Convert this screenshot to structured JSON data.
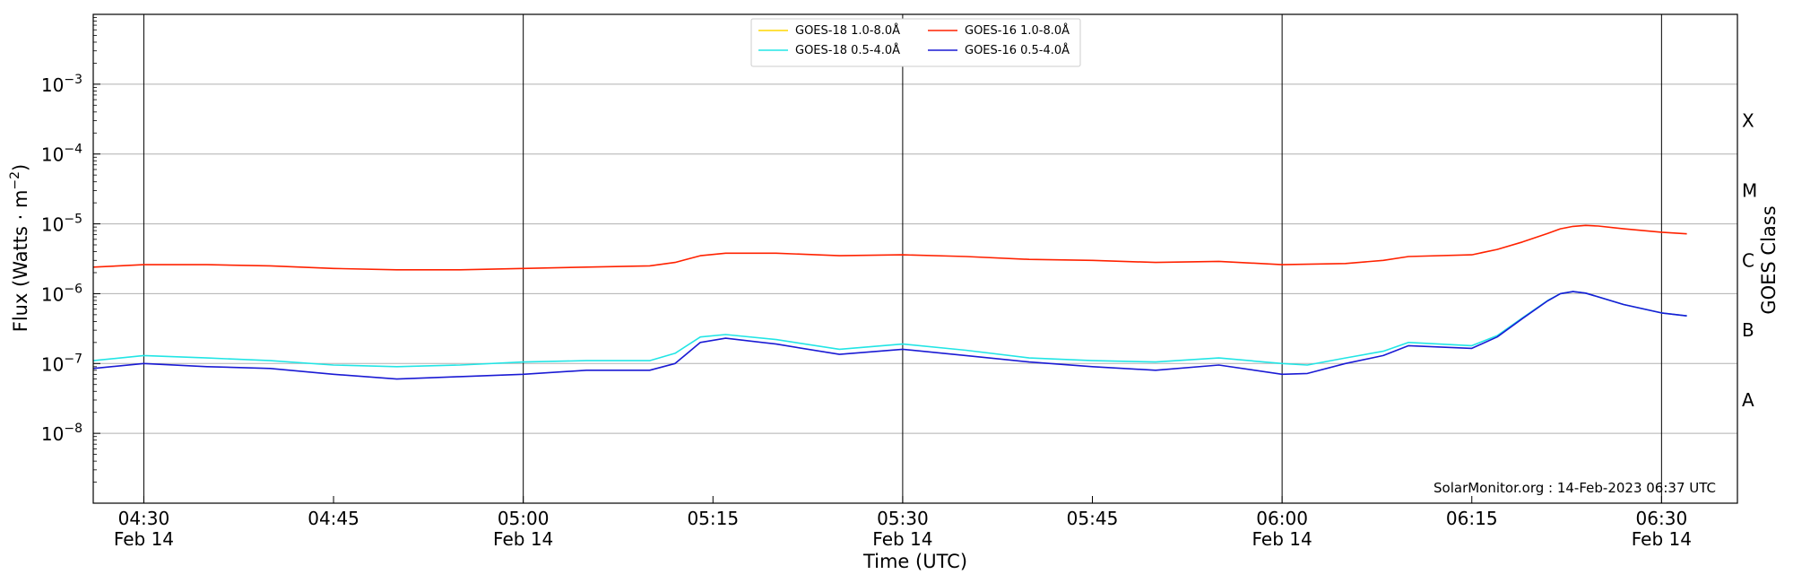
{
  "chart_data": {
    "type": "line",
    "title": "",
    "xlabel": "Time (UTC)",
    "ylabel": "Flux (Watts · m⁻²)",
    "ylabel_right": "GOES Class",
    "yscale": "log",
    "ylim": [
      1e-09,
      0.01
    ],
    "x_range": [
      "04:26",
      "06:36"
    ],
    "x_ticks": [
      {
        "time": "04:30",
        "label": "04:30",
        "date": "Feb 14"
      },
      {
        "time": "04:45",
        "label": "04:45",
        "date": ""
      },
      {
        "time": "05:00",
        "label": "05:00",
        "date": "Feb 14"
      },
      {
        "time": "05:15",
        "label": "05:15",
        "date": ""
      },
      {
        "time": "05:30",
        "label": "05:30",
        "date": "Feb 14"
      },
      {
        "time": "05:45",
        "label": "05:45",
        "date": ""
      },
      {
        "time": "06:00",
        "label": "06:00",
        "date": "Feb 14"
      },
      {
        "time": "06:15",
        "label": "06:15",
        "date": ""
      },
      {
        "time": "06:30",
        "label": "06:30",
        "date": "Feb 14"
      }
    ],
    "vertical_lines": [
      "04:30",
      "05:00",
      "05:30",
      "06:00",
      "06:30"
    ],
    "y_ticks": [
      {
        "value": 1e-08,
        "base": "10",
        "exp": "−8"
      },
      {
        "value": 1e-07,
        "base": "10",
        "exp": "−7"
      },
      {
        "value": 1e-06,
        "base": "10",
        "exp": "−6"
      },
      {
        "value": 1e-05,
        "base": "10",
        "exp": "−5"
      },
      {
        "value": 0.0001,
        "base": "10",
        "exp": "−4"
      },
      {
        "value": 0.001,
        "base": "10",
        "exp": "−3"
      }
    ],
    "goes_classes": [
      {
        "label": "A",
        "value": 3e-08
      },
      {
        "label": "B",
        "value": 3e-07
      },
      {
        "label": "C",
        "value": 3e-06
      },
      {
        "label": "M",
        "value": 3e-05
      },
      {
        "label": "X",
        "value": 0.0003
      }
    ],
    "grid": "horizontal at decades",
    "legend_position": "top-center",
    "legend": [
      {
        "label": "GOES-18 1.0-8.0Å",
        "color": "#ffd700"
      },
      {
        "label": "GOES-18 0.5-4.0Å",
        "color": "#22e5e5"
      },
      {
        "label": "GOES-16 1.0-8.0Å",
        "color": "#ff2200"
      },
      {
        "label": "GOES-16 0.5-4.0Å",
        "color": "#1a1ad4"
      }
    ],
    "footer": "SolarMonitor.org : 14-Feb-2023 06:37 UTC",
    "series": [
      {
        "name": "GOES-16 1.0-8.0Å",
        "color": "#ff2200",
        "x": [
          "04:26",
          "04:30",
          "04:35",
          "04:40",
          "04:45",
          "04:50",
          "04:55",
          "05:00",
          "05:05",
          "05:10",
          "05:12",
          "05:14",
          "05:16",
          "05:20",
          "05:25",
          "05:30",
          "05:35",
          "05:40",
          "05:45",
          "05:50",
          "05:55",
          "06:00",
          "06:05",
          "06:08",
          "06:10",
          "06:15",
          "06:17",
          "06:19",
          "06:21",
          "06:22",
          "06:23",
          "06:24",
          "06:25",
          "06:27",
          "06:30",
          "06:32"
        ],
        "values": [
          2.4e-06,
          2.6e-06,
          2.6e-06,
          2.5e-06,
          2.3e-06,
          2.2e-06,
          2.2e-06,
          2.3e-06,
          2.4e-06,
          2.5e-06,
          2.8e-06,
          3.5e-06,
          3.8e-06,
          3.8e-06,
          3.5e-06,
          3.6e-06,
          3.4e-06,
          3.1e-06,
          3e-06,
          2.8e-06,
          2.9e-06,
          2.6e-06,
          2.7e-06,
          3e-06,
          3.4e-06,
          3.6e-06,
          4.3e-06,
          5.5e-06,
          7.3e-06,
          8.5e-06,
          9.2e-06,
          9.5e-06,
          9.3e-06,
          8.5e-06,
          7.6e-06,
          7.2e-06
        ]
      },
      {
        "name": "GOES-18 0.5-4.0Å",
        "color": "#22e5e5",
        "x": [
          "04:26",
          "04:30",
          "04:35",
          "04:40",
          "04:45",
          "04:50",
          "04:55",
          "05:00",
          "05:05",
          "05:10",
          "05:12",
          "05:14",
          "05:16",
          "05:20",
          "05:25",
          "05:30",
          "05:35",
          "05:40",
          "05:45",
          "05:50",
          "05:55",
          "06:00",
          "06:02",
          "06:05",
          "06:08",
          "06:10",
          "06:15",
          "06:17",
          "06:19",
          "06:21",
          "06:22",
          "06:23",
          "06:24",
          "06:25",
          "06:27",
          "06:30",
          "06:32"
        ],
        "values": [
          1.1e-07,
          1.3e-07,
          1.2e-07,
          1.1e-07,
          9.5e-08,
          9e-08,
          9.5e-08,
          1.05e-07,
          1.1e-07,
          1.1e-07,
          1.4e-07,
          2.4e-07,
          2.6e-07,
          2.2e-07,
          1.6e-07,
          1.9e-07,
          1.55e-07,
          1.2e-07,
          1.1e-07,
          1.05e-07,
          1.2e-07,
          1e-07,
          9.5e-08,
          1.2e-07,
          1.5e-07,
          2e-07,
          1.8e-07,
          2.5e-07,
          4.5e-07,
          8e-07,
          1e-06,
          1.07e-06,
          1.02e-06,
          9e-07,
          7e-07,
          5.3e-07,
          4.8e-07
        ]
      },
      {
        "name": "GOES-16 0.5-4.0Å",
        "color": "#1a1ad4",
        "x": [
          "04:26",
          "04:30",
          "04:35",
          "04:40",
          "04:45",
          "04:50",
          "04:55",
          "05:00",
          "05:05",
          "05:10",
          "05:12",
          "05:14",
          "05:16",
          "05:20",
          "05:25",
          "05:30",
          "05:35",
          "05:40",
          "05:45",
          "05:50",
          "05:55",
          "06:00",
          "06:02",
          "06:05",
          "06:08",
          "06:10",
          "06:15",
          "06:17",
          "06:19",
          "06:21",
          "06:22",
          "06:23",
          "06:24",
          "06:25",
          "06:27",
          "06:30",
          "06:32"
        ],
        "values": [
          8.5e-08,
          1e-07,
          9e-08,
          8.5e-08,
          7e-08,
          6e-08,
          6.5e-08,
          7e-08,
          8e-08,
          8e-08,
          1e-07,
          2e-07,
          2.3e-07,
          1.9e-07,
          1.35e-07,
          1.6e-07,
          1.3e-07,
          1.05e-07,
          9e-08,
          8e-08,
          9.5e-08,
          7e-08,
          7.2e-08,
          1e-07,
          1.3e-07,
          1.8e-07,
          1.65e-07,
          2.4e-07,
          4.4e-07,
          7.9e-07,
          1e-06,
          1.07e-06,
          1.02e-06,
          9e-07,
          7e-07,
          5.3e-07,
          4.8e-07
        ]
      }
    ]
  }
}
